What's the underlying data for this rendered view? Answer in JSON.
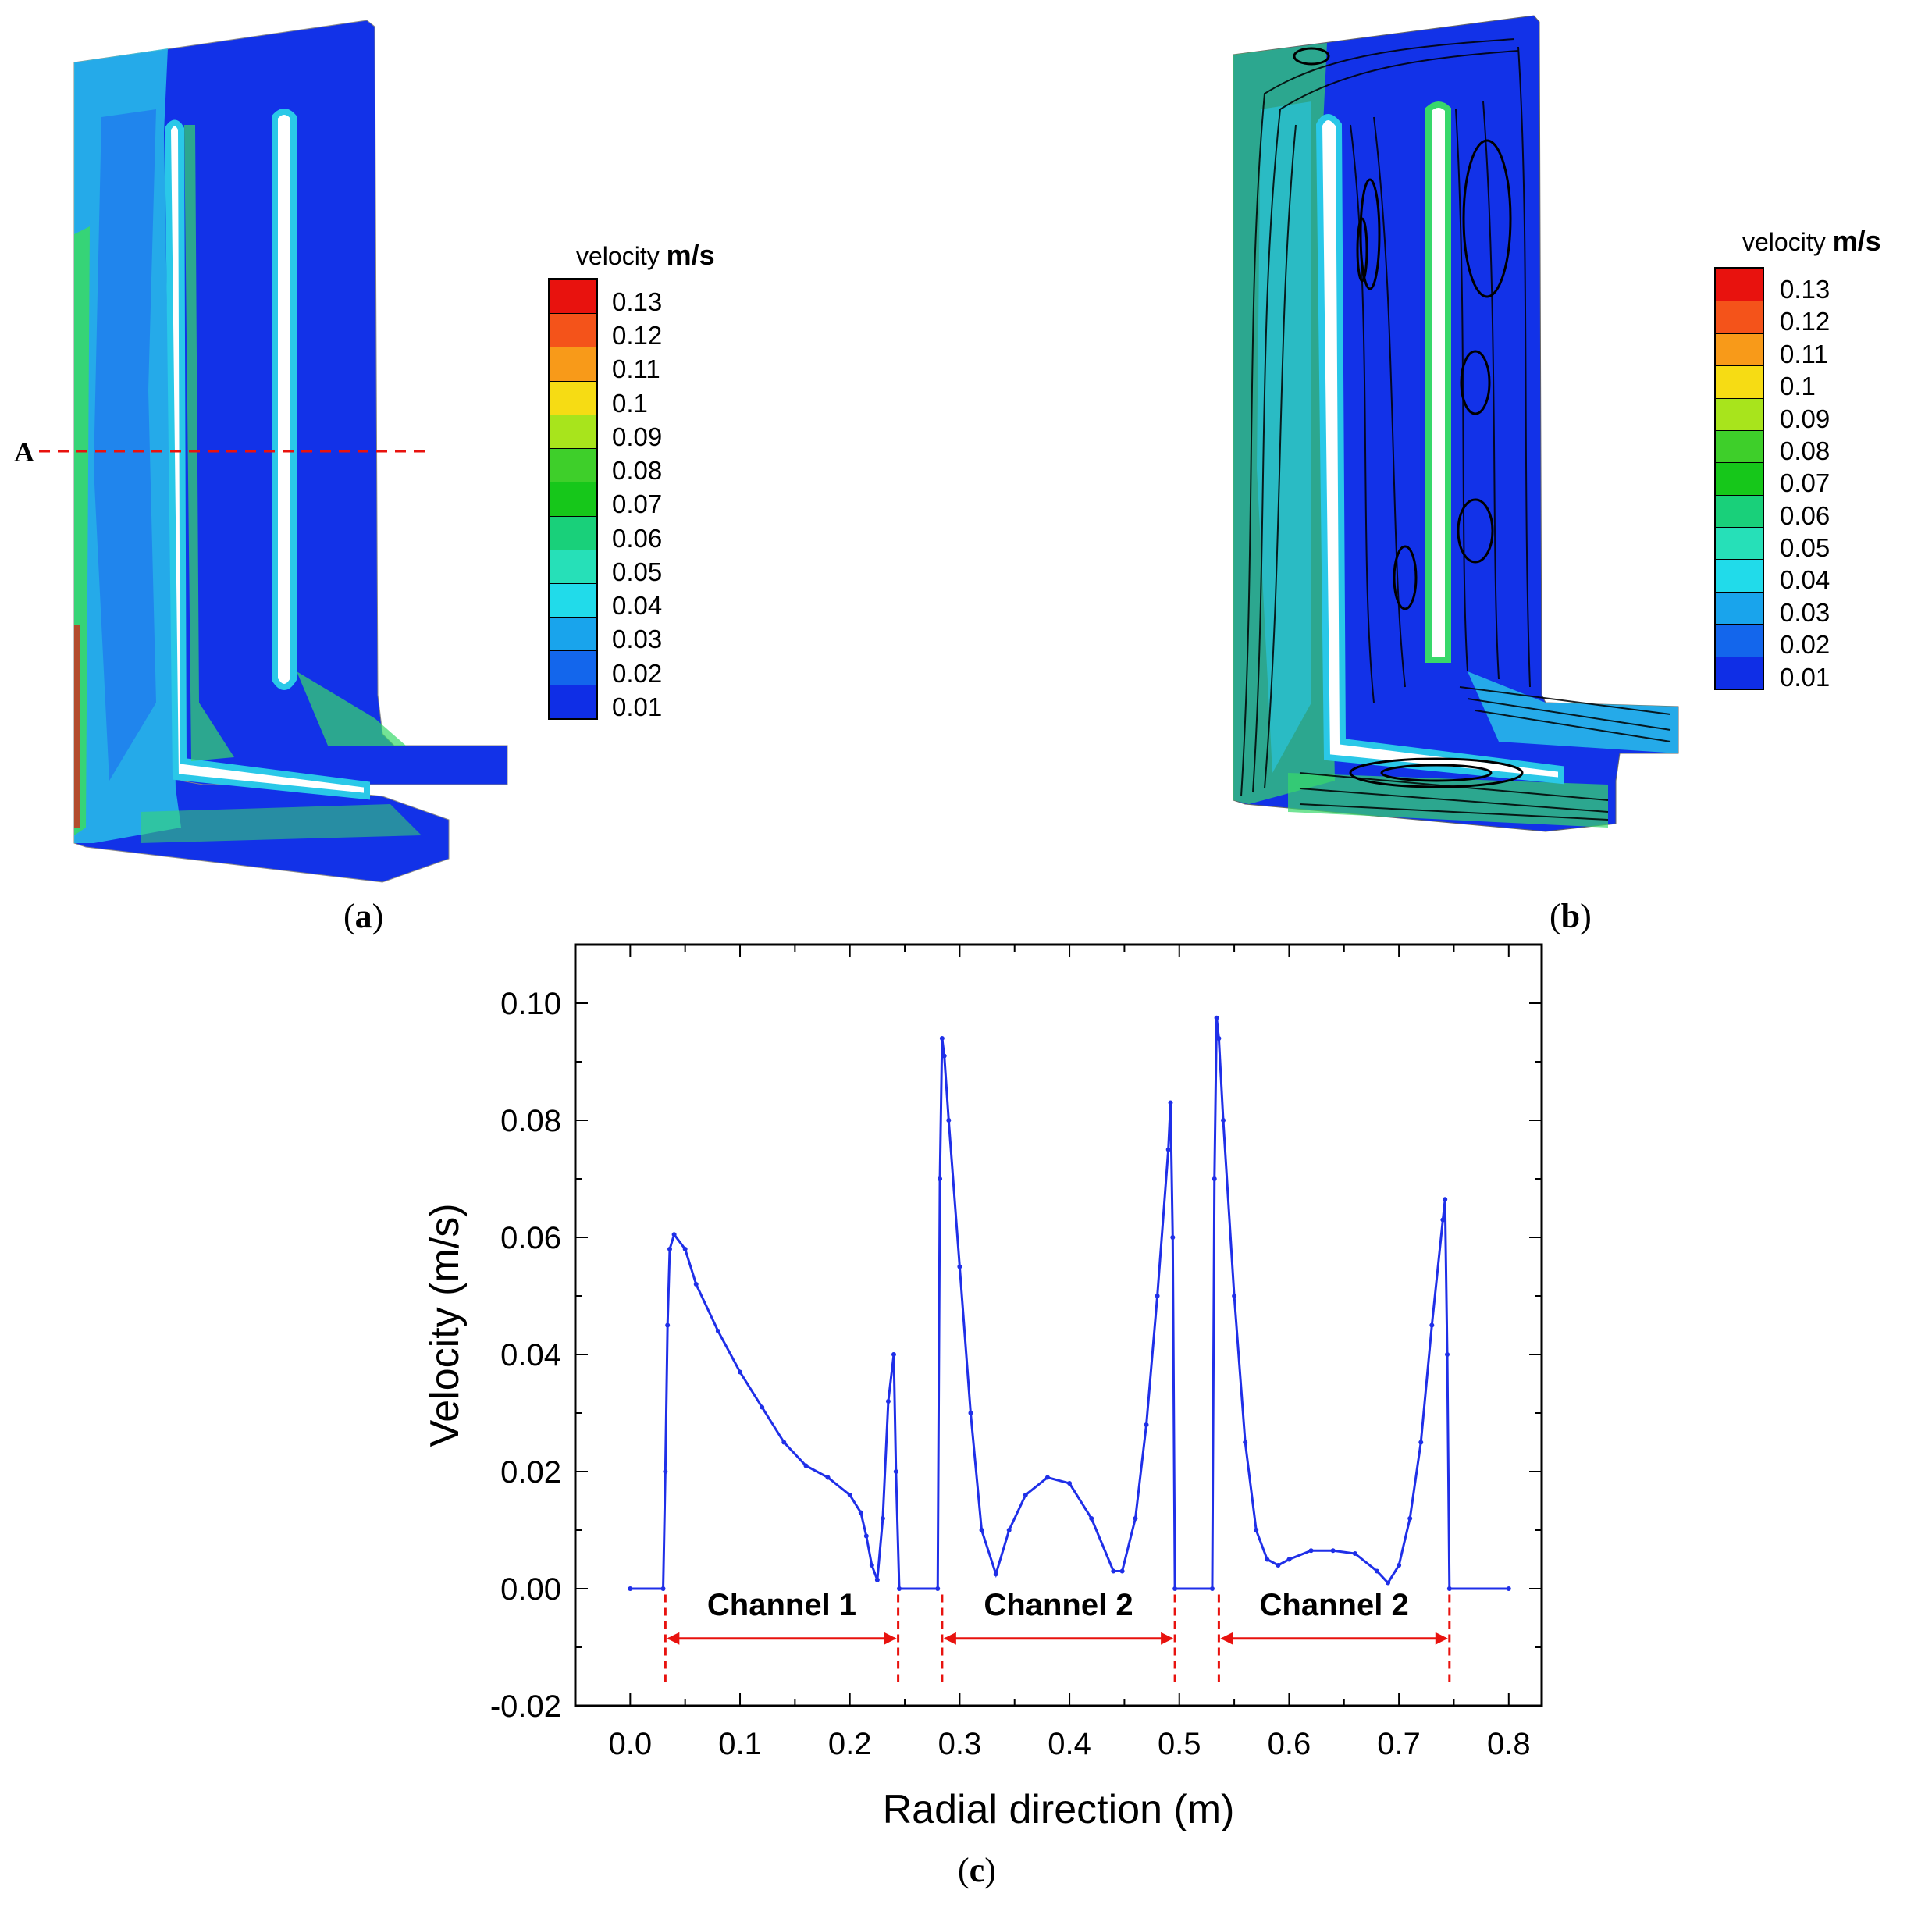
{
  "panels": {
    "a": {
      "caption": "a",
      "section_marker": "A",
      "legend_title": "velocity",
      "legend_unit": "m/s"
    },
    "b": {
      "caption": "b",
      "legend_title": "velocity",
      "legend_unit": "m/s"
    },
    "c": {
      "caption": "c"
    }
  },
  "colorbar": {
    "labels": [
      "0.13",
      "0.12",
      "0.11",
      "0.1",
      "0.09",
      "0.08",
      "0.07",
      "0.06",
      "0.05",
      "0.04",
      "0.03",
      "0.02",
      "0.01"
    ],
    "colors": [
      "#e8120e",
      "#f4531a",
      "#f89a19",
      "#f6dc14",
      "#a8e41c",
      "#3ecf2a",
      "#16c71a",
      "#19d07a",
      "#26e0b8",
      "#21dbea",
      "#19a4ec",
      "#1366ec",
      "#0f2ee6"
    ]
  },
  "field_colors": {
    "dark_blue": "#1232e8",
    "mid_blue": "#1e6cf0",
    "cyan": "#2ac8e8",
    "green": "#38d86a",
    "red": "#e8120e"
  },
  "chart_data": {
    "type": "line",
    "xlabel": "Radial direction (m)",
    "ylabel": "Velocity (m/s)",
    "xlim": [
      -0.05,
      0.83
    ],
    "ylim": [
      -0.02,
      0.11
    ],
    "xticks": [
      "0.0",
      "0.1",
      "0.2",
      "0.3",
      "0.4",
      "0.5",
      "0.6",
      "0.7",
      "0.8"
    ],
    "xtick_values": [
      0.0,
      0.1,
      0.2,
      0.3,
      0.4,
      0.5,
      0.6,
      0.7,
      0.8
    ],
    "yticks": [
      "-0.02",
      "0.00",
      "0.02",
      "0.04",
      "0.06",
      "0.08",
      "0.10"
    ],
    "ytick_values": [
      -0.02,
      0.0,
      0.02,
      0.04,
      0.06,
      0.08,
      0.1
    ],
    "line_color": "#1f2fe8",
    "annotation_color": "#e8120e",
    "series": [
      {
        "x": [
          0.0,
          0.03,
          0.032,
          0.034,
          0.036,
          0.04,
          0.05,
          0.06,
          0.08,
          0.1,
          0.12,
          0.14,
          0.16,
          0.18,
          0.2,
          0.21,
          0.215,
          0.22,
          0.225,
          0.23,
          0.235,
          0.24,
          0.242,
          0.245,
          0.28,
          0.282,
          0.284,
          0.286,
          0.29,
          0.3,
          0.31,
          0.32,
          0.333,
          0.345,
          0.36,
          0.38,
          0.4,
          0.42,
          0.44,
          0.448,
          0.46,
          0.47,
          0.48,
          0.49,
          0.492,
          0.494,
          0.496,
          0.53,
          0.532,
          0.534,
          0.536,
          0.54,
          0.55,
          0.56,
          0.57,
          0.58,
          0.59,
          0.6,
          0.62,
          0.64,
          0.66,
          0.68,
          0.69,
          0.7,
          0.71,
          0.72,
          0.73,
          0.74,
          0.742,
          0.744,
          0.746,
          0.8
        ],
        "y": [
          0.0,
          0.0,
          0.02,
          0.045,
          0.058,
          0.0605,
          0.058,
          0.052,
          0.044,
          0.037,
          0.031,
          0.025,
          0.021,
          0.019,
          0.016,
          0.013,
          0.009,
          0.004,
          0.0015,
          0.012,
          0.032,
          0.04,
          0.02,
          0.0,
          0.0,
          0.07,
          0.094,
          0.091,
          0.08,
          0.055,
          0.03,
          0.01,
          0.0025,
          0.01,
          0.016,
          0.019,
          0.018,
          0.012,
          0.003,
          0.003,
          0.012,
          0.028,
          0.05,
          0.075,
          0.083,
          0.06,
          0.0,
          0.0,
          0.07,
          0.0975,
          0.094,
          0.08,
          0.05,
          0.025,
          0.01,
          0.005,
          0.004,
          0.005,
          0.0065,
          0.0065,
          0.006,
          0.003,
          0.001,
          0.004,
          0.012,
          0.025,
          0.045,
          0.063,
          0.0665,
          0.04,
          0.0,
          0.0
        ]
      }
    ],
    "annotations": [
      {
        "label": "Channel 1",
        "x_start": 0.032,
        "x_end": 0.244
      },
      {
        "label": "Channel 2",
        "x_start": 0.284,
        "x_end": 0.496
      },
      {
        "label": "Channel 2",
        "x_start": 0.536,
        "x_end": 0.746
      }
    ]
  }
}
